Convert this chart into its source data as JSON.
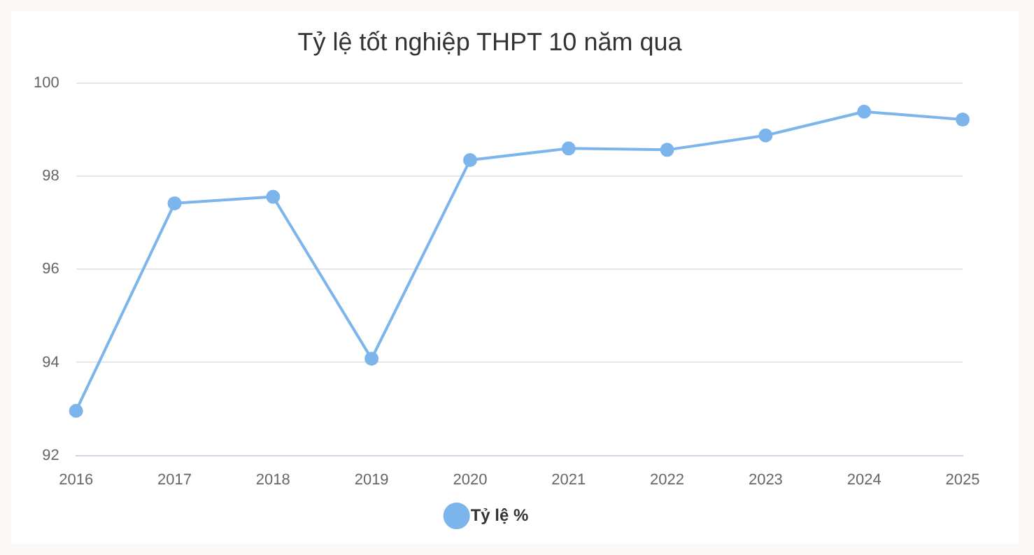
{
  "chart_data": {
    "type": "line",
    "title": "Tỷ lệ tốt nghiệp THPT 10 năm qua",
    "categories": [
      "2016",
      "2017",
      "2018",
      "2019",
      "2020",
      "2021",
      "2022",
      "2023",
      "2024",
      "2025"
    ],
    "series": [
      {
        "name": "Tỷ lệ %",
        "color": "#7cb5ec",
        "values": [
          92.96,
          97.42,
          97.56,
          94.08,
          98.35,
          98.6,
          98.57,
          98.88,
          99.39,
          99.22
        ]
      }
    ],
    "ylim": [
      92,
      100
    ],
    "yticks": [
      92,
      94,
      96,
      98,
      100
    ],
    "grid": "y",
    "legend": "bottom",
    "marker": "circle",
    "line_style": "solid"
  }
}
